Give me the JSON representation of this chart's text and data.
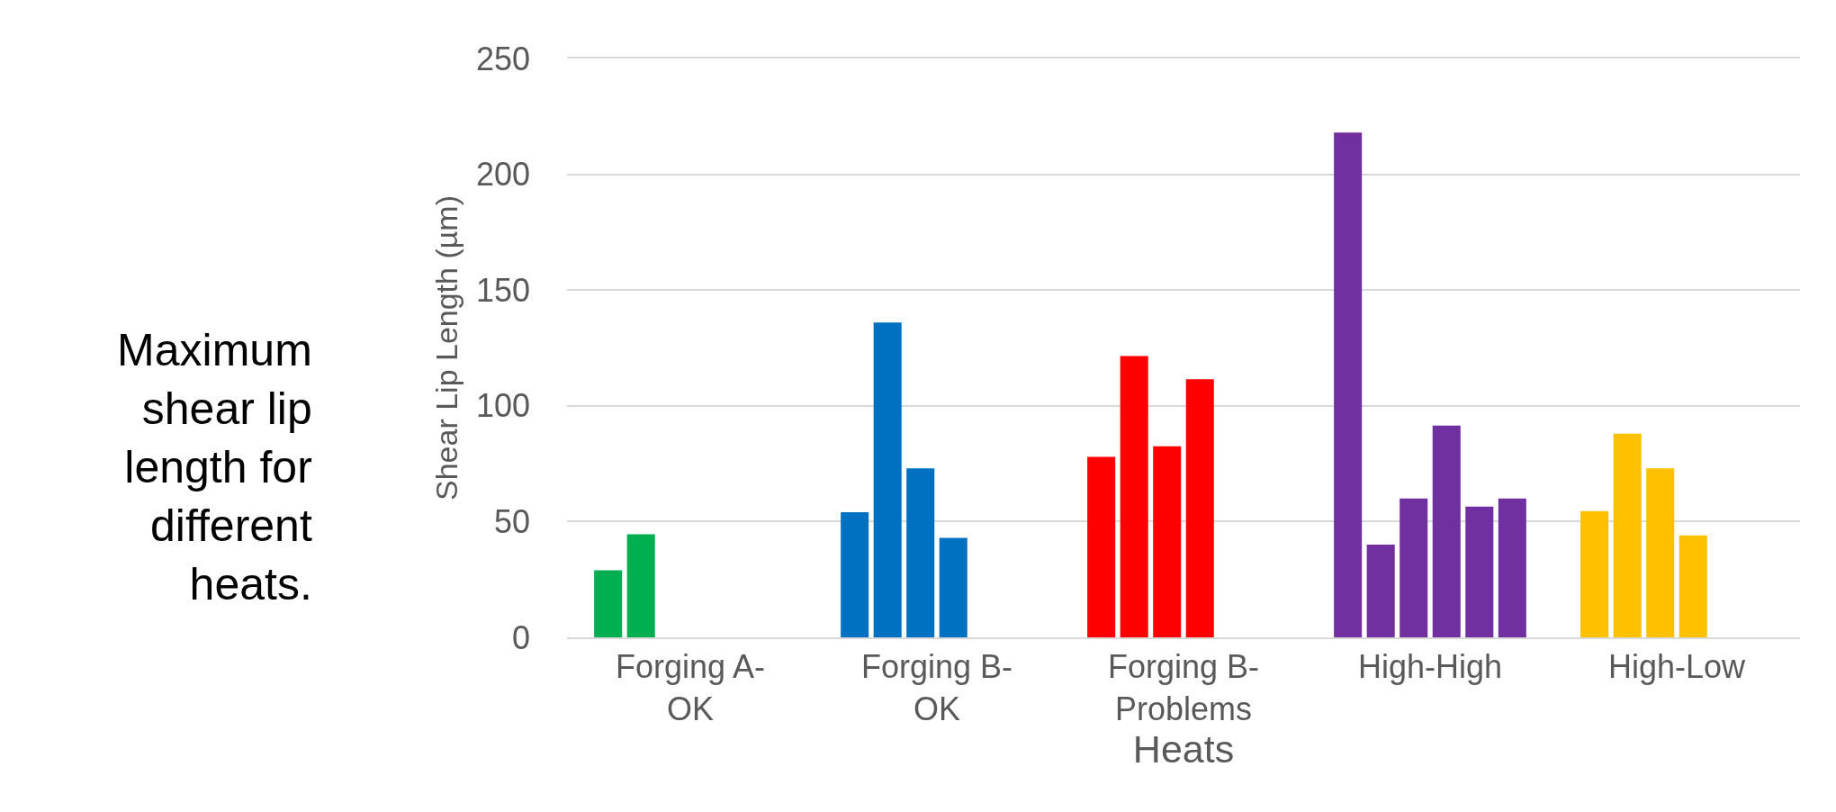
{
  "chart_data": {
    "type": "bar",
    "title": "Maximum shear lip length for different heats.",
    "xlabel": "Heats",
    "ylabel": "Shear Lip Length (µm)",
    "categories": [
      "Forging A-OK",
      "Forging B-OK",
      "Forging B-Problems",
      "High-High",
      "High-Low"
    ],
    "series": [
      {
        "colors": [
          "#00b050",
          "#0070c0",
          "#ff0000",
          "#7030a0",
          "#ffc000"
        ],
        "values": [
          29,
          54,
          78,
          218,
          54.5
        ]
      },
      {
        "colors": [
          "#00b050",
          "#0070c0",
          "#ff0000",
          "#7030a0",
          "#ffc000"
        ],
        "values": [
          44.5,
          136,
          121.5,
          40,
          88
        ]
      },
      {
        "colors": [
          "#00b050",
          "#0070c0",
          "#ff0000",
          "#7030a0",
          "#ffc000"
        ],
        "values": [
          null,
          73,
          82.5,
          60,
          73
        ]
      },
      {
        "colors": [
          "#00b050",
          "#0070c0",
          "#ff0000",
          "#7030a0",
          "#ffc000"
        ],
        "values": [
          null,
          43,
          111.5,
          91.5,
          44
        ]
      },
      {
        "colors": [
          "#00b050",
          "#0070c0",
          "#ff0000",
          "#7030a0",
          "#ffc000"
        ],
        "values": [
          null,
          null,
          null,
          56.5,
          null
        ]
      },
      {
        "colors": [
          "#00b050",
          "#0070c0",
          "#ff0000",
          "#7030a0",
          "#ffc000"
        ],
        "values": [
          null,
          null,
          null,
          60,
          null
        ]
      }
    ],
    "ylim": [
      0,
      250
    ],
    "yticks": [
      0,
      50,
      100,
      150,
      200,
      250
    ],
    "grid": "y"
  }
}
